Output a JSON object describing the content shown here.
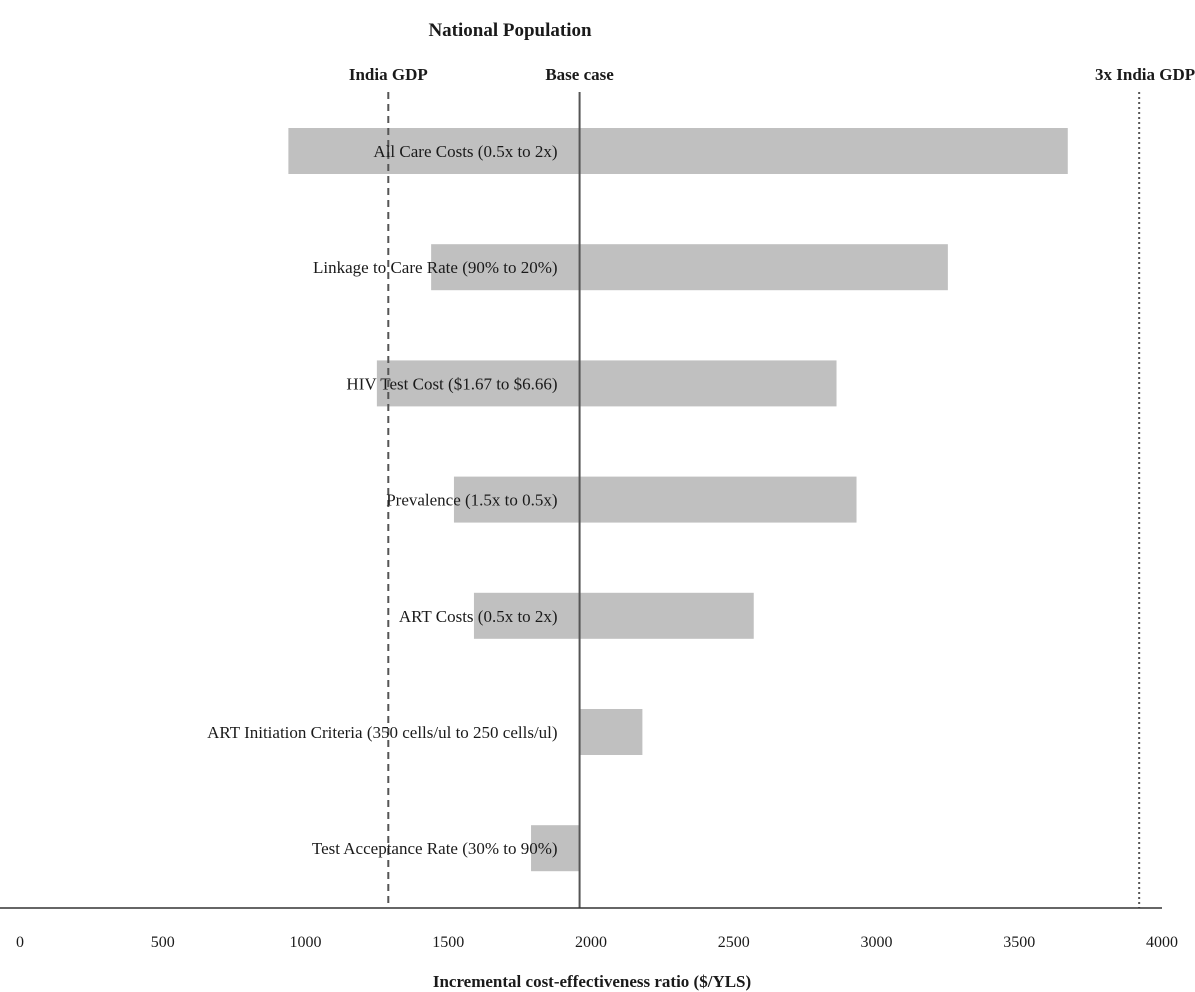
{
  "chart_data": {
    "type": "bar",
    "orientation": "horizontal",
    "style": "tornado",
    "title": "National Population",
    "xlabel": "Incremental cost-effectiveness ratio ($/YLS)",
    "ylabel": "",
    "xlim": [
      0,
      4000
    ],
    "xticks": [
      0,
      500,
      1000,
      1500,
      2000,
      2500,
      3000,
      3500,
      4000
    ],
    "grid": false,
    "bar_color": "#c0c0c0",
    "base_case": 1960,
    "reference_lines": [
      {
        "label": "India GDP",
        "value": 1290,
        "style": "dashed"
      },
      {
        "label": "Base case",
        "value": 1960,
        "style": "solid"
      },
      {
        "label": "3x India GDP",
        "value": 3920,
        "style": "dotted"
      }
    ],
    "categories": [
      "All Care Costs (0.5x to 2x)",
      "Linkage to Care Rate (90% to 20%)",
      "HIV Test Cost ($1.67 to $6.66)",
      "Prevalence (1.5x to 0.5x)",
      "ART Costs (0.5x to 2x)",
      "ART Initiation Criteria (350 cells/ul to 250 cells/ul)",
      "Test Acceptance Rate (30% to 90%)"
    ],
    "ranges": [
      [
        940,
        3670
      ],
      [
        1440,
        3250
      ],
      [
        1250,
        2860
      ],
      [
        1520,
        2930
      ],
      [
        1590,
        2570
      ],
      [
        1960,
        2180
      ],
      [
        1790,
        1960
      ]
    ]
  }
}
